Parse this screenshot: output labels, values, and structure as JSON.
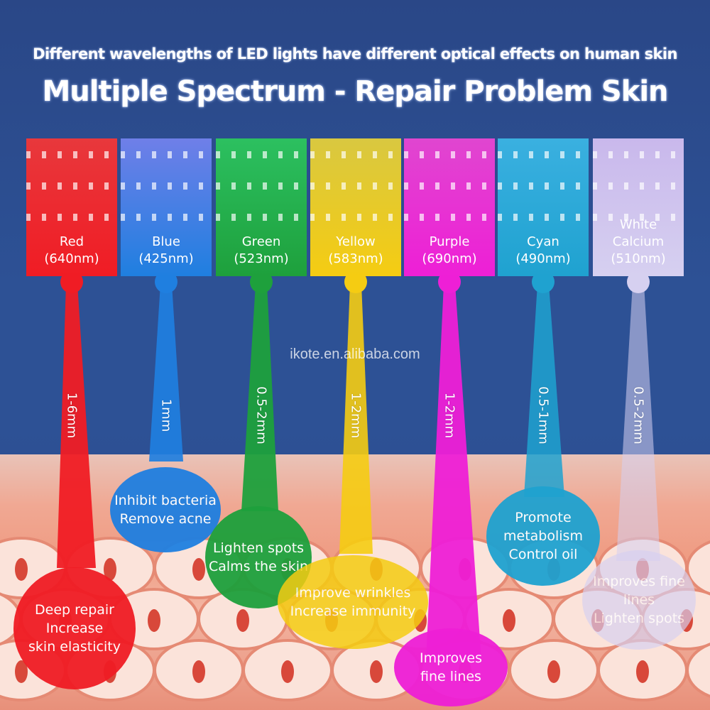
{
  "subtitle": "Different wavelengths of LED lights have different optical effects on human skin",
  "title": "Multiple Spectrum - Repair Problem Skin",
  "watermark": "ikote.en.alibaba.com",
  "lights": [
    {
      "name": "Red",
      "wavelength": "(640nm)",
      "depth": "1-6mm",
      "color": "#f01c24",
      "panel": "#e8383c",
      "effects": [
        "Deep repair",
        "Increase",
        "skin elasticity"
      ]
    },
    {
      "name": "Blue",
      "wavelength": "(425nm)",
      "depth": "1mm",
      "color": "#1f7fe0",
      "panel": "#6f7fe8",
      "effects": [
        "Inhibit bacteria",
        "Remove acne"
      ]
    },
    {
      "name": "Green",
      "wavelength": "(523nm)",
      "depth": "0.5-2mm",
      "color": "#1ea03c",
      "panel": "#2cc060",
      "effects": [
        "Lighten spots",
        "Calms the skin"
      ]
    },
    {
      "name": "Yellow",
      "wavelength": "(583nm)",
      "depth": "1-2mm",
      "color": "#f5cc12",
      "panel": "#d9c840",
      "effects": [
        "Improve wrinkles",
        "Increase immunity"
      ]
    },
    {
      "name": "Purple",
      "wavelength": "(690nm)",
      "depth": "1-2mm",
      "color": "#ee1fd6",
      "panel": "#e046d0",
      "effects": [
        "Improves",
        "fine lines"
      ]
    },
    {
      "name": "Cyan",
      "wavelength": "(490nm)",
      "depth": "0.5-1mm",
      "color": "#1fa2d0",
      "panel": "#3ab0e0",
      "effects": [
        "Promote",
        "metabolism",
        "Control oil"
      ]
    },
    {
      "name": "White Calcium",
      "wavelength": "(510nm)",
      "depth": "0.5-2mm",
      "color": "#d6d0f0",
      "panel": "#c9b8ec",
      "effects": [
        "Improves fine",
        "lines",
        "Lighten spots"
      ]
    }
  ]
}
